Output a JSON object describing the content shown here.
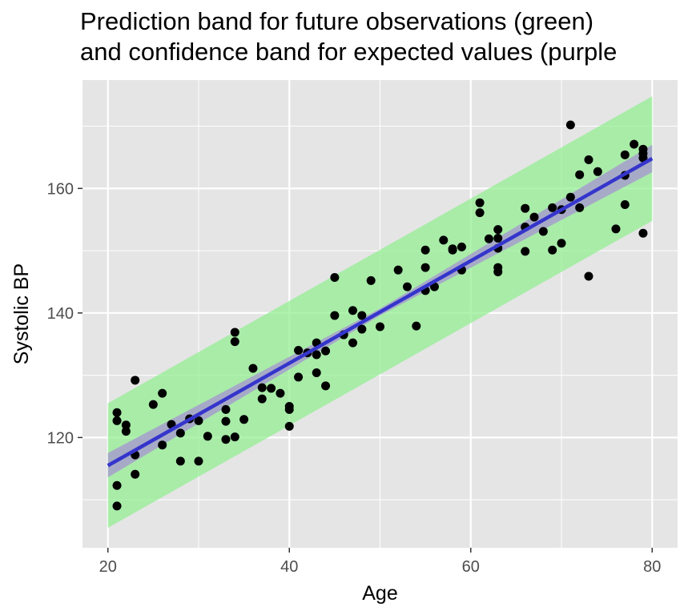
{
  "chart_data": {
    "type": "scatter",
    "title_lines": [
      "Prediction band for future observations (green)",
      "and confidence band for expected values (purple"
    ],
    "xlabel": "Age",
    "ylabel": "Systolic BP",
    "xlim": [
      17.2,
      82.8
    ],
    "ylim": [
      102.3,
      177.4
    ],
    "x_ticks": [
      20,
      40,
      60,
      80
    ],
    "y_ticks": [
      120,
      140,
      160
    ],
    "grid": true,
    "legend": "none",
    "colors": {
      "panel": "#e5e5e5",
      "grid": "#ffffff",
      "points": "#000000",
      "fit_line": "#3535cc",
      "confidence_band": "#a6a6c8",
      "prediction_band": "#90ee90"
    },
    "fit_line": {
      "x": [
        20,
        80
      ],
      "y": [
        115.5,
        164.8
      ]
    },
    "confidence_band": {
      "x": [
        20,
        50,
        80
      ],
      "lower": [
        113.6,
        139.6,
        162.6
      ],
      "upper": [
        117.5,
        140.7,
        167.0
      ]
    },
    "prediction_band": {
      "x": [
        20,
        80
      ],
      "lower": [
        105.5,
        154.8
      ],
      "upper": [
        125.5,
        174.8
      ]
    },
    "points": [
      {
        "x": 21,
        "y": 124.0
      },
      {
        "x": 21,
        "y": 122.7
      },
      {
        "x": 21,
        "y": 112.3
      },
      {
        "x": 21,
        "y": 109.0
      },
      {
        "x": 22,
        "y": 122.0
      },
      {
        "x": 22,
        "y": 121.0
      },
      {
        "x": 23,
        "y": 129.2
      },
      {
        "x": 23,
        "y": 117.2
      },
      {
        "x": 23,
        "y": 114.1
      },
      {
        "x": 25,
        "y": 125.3
      },
      {
        "x": 26,
        "y": 127.1
      },
      {
        "x": 26,
        "y": 118.8
      },
      {
        "x": 27,
        "y": 122.1
      },
      {
        "x": 28,
        "y": 120.7
      },
      {
        "x": 28,
        "y": 116.2
      },
      {
        "x": 29,
        "y": 123.0
      },
      {
        "x": 30,
        "y": 122.7
      },
      {
        "x": 30,
        "y": 116.2
      },
      {
        "x": 31,
        "y": 120.2
      },
      {
        "x": 33,
        "y": 124.5
      },
      {
        "x": 33,
        "y": 122.6
      },
      {
        "x": 33,
        "y": 119.7
      },
      {
        "x": 34,
        "y": 136.9
      },
      {
        "x": 34,
        "y": 135.4
      },
      {
        "x": 34,
        "y": 120.1
      },
      {
        "x": 35,
        "y": 122.9
      },
      {
        "x": 36,
        "y": 131.1
      },
      {
        "x": 37,
        "y": 128.0
      },
      {
        "x": 37,
        "y": 126.2
      },
      {
        "x": 38,
        "y": 127.9
      },
      {
        "x": 39,
        "y": 127.1
      },
      {
        "x": 40,
        "y": 125.0
      },
      {
        "x": 40,
        "y": 124.5
      },
      {
        "x": 40,
        "y": 121.8
      },
      {
        "x": 41,
        "y": 134.0
      },
      {
        "x": 41,
        "y": 129.7
      },
      {
        "x": 42,
        "y": 133.6
      },
      {
        "x": 43,
        "y": 135.2
      },
      {
        "x": 43,
        "y": 133.3
      },
      {
        "x": 43,
        "y": 130.4
      },
      {
        "x": 44,
        "y": 133.9
      },
      {
        "x": 44,
        "y": 128.3
      },
      {
        "x": 45,
        "y": 145.7
      },
      {
        "x": 45,
        "y": 139.6
      },
      {
        "x": 46,
        "y": 136.5
      },
      {
        "x": 47,
        "y": 140.4
      },
      {
        "x": 47,
        "y": 135.2
      },
      {
        "x": 48,
        "y": 139.6
      },
      {
        "x": 48,
        "y": 137.4
      },
      {
        "x": 49,
        "y": 145.2
      },
      {
        "x": 50,
        "y": 137.8
      },
      {
        "x": 52,
        "y": 146.9
      },
      {
        "x": 53,
        "y": 144.2
      },
      {
        "x": 54,
        "y": 137.9
      },
      {
        "x": 55,
        "y": 150.1
      },
      {
        "x": 55,
        "y": 147.3
      },
      {
        "x": 55,
        "y": 143.6
      },
      {
        "x": 56,
        "y": 144.2
      },
      {
        "x": 57,
        "y": 151.7
      },
      {
        "x": 58,
        "y": 150.3
      },
      {
        "x": 58,
        "y": 150.1
      },
      {
        "x": 59,
        "y": 150.6
      },
      {
        "x": 59,
        "y": 146.9
      },
      {
        "x": 61,
        "y": 157.7
      },
      {
        "x": 61,
        "y": 156.1
      },
      {
        "x": 62,
        "y": 151.9
      },
      {
        "x": 63,
        "y": 153.4
      },
      {
        "x": 63,
        "y": 152.0
      },
      {
        "x": 63,
        "y": 150.4
      },
      {
        "x": 63,
        "y": 147.3
      },
      {
        "x": 63,
        "y": 146.6
      },
      {
        "x": 66,
        "y": 156.8
      },
      {
        "x": 66,
        "y": 153.8
      },
      {
        "x": 66,
        "y": 149.9
      },
      {
        "x": 67,
        "y": 155.4
      },
      {
        "x": 68,
        "y": 153.1
      },
      {
        "x": 69,
        "y": 156.9
      },
      {
        "x": 69,
        "y": 150.1
      },
      {
        "x": 70,
        "y": 156.6
      },
      {
        "x": 70,
        "y": 151.2
      },
      {
        "x": 71,
        "y": 170.2
      },
      {
        "x": 71,
        "y": 158.6
      },
      {
        "x": 72,
        "y": 162.2
      },
      {
        "x": 72,
        "y": 156.9
      },
      {
        "x": 73,
        "y": 164.6
      },
      {
        "x": 73,
        "y": 145.9
      },
      {
        "x": 74,
        "y": 162.7
      },
      {
        "x": 76,
        "y": 153.5
      },
      {
        "x": 77,
        "y": 165.4
      },
      {
        "x": 77,
        "y": 162.1
      },
      {
        "x": 77,
        "y": 157.4
      },
      {
        "x": 78,
        "y": 167.1
      },
      {
        "x": 79,
        "y": 166.3
      },
      {
        "x": 79,
        "y": 165.6
      },
      {
        "x": 79,
        "y": 164.9
      },
      {
        "x": 79,
        "y": 152.8
      }
    ]
  }
}
